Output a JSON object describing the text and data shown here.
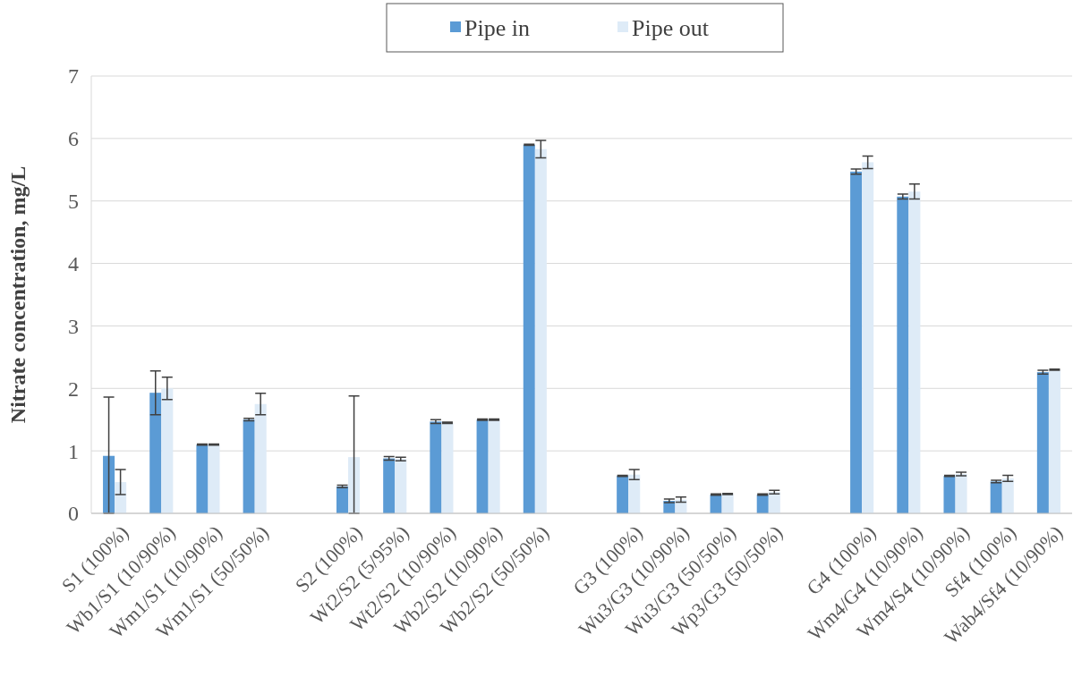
{
  "chart_data": {
    "type": "bar",
    "ylabel": "Nitrate concentration, mg/L",
    "categories": [
      "S1 (100%)",
      "Wb1/S1 (10/90%)",
      "Wm1/S1 (10/90%)",
      "Wm1/S1 (50/50%)",
      null,
      "S2 (100%)",
      "Wt2/S2 (5/95%)",
      "Wt2/S2 (10/90%)",
      "Wb2/S2 (10/90%)",
      "Wb2/S2 (50/50%)",
      null,
      "G3 (100%)",
      "Wu3/G3 (10/90%)",
      "Wu3/G3 (50/50%)",
      "Wp3/G3 (50/50%)",
      null,
      "G4 (100%)",
      "Wm4/G4 (10/90%)",
      "Wm4/S4 (10/90%)",
      "Sf4 (100%)",
      "Wab4/Sf4 (10/90%)"
    ],
    "series": [
      {
        "name": "Pipe in",
        "color": "#5b9bd5",
        "values": [
          0.92,
          1.93,
          1.1,
          1.5,
          null,
          0.43,
          0.88,
          1.47,
          1.5,
          5.9,
          null,
          0.6,
          0.2,
          0.3,
          0.3,
          null,
          5.47,
          5.07,
          0.6,
          0.51,
          2.26
        ],
        "errors": [
          [
            0,
            1.86
          ],
          0.35,
          0.01,
          0.02,
          null,
          0.02,
          0.03,
          0.03,
          0.01,
          0.01,
          null,
          0.01,
          0.03,
          0.01,
          0.01,
          null,
          0.04,
          0.04,
          0.01,
          0.02,
          0.03
        ]
      },
      {
        "name": "Pipe out",
        "color": "#deebf7",
        "values": [
          0.5,
          2.0,
          1.1,
          1.75,
          null,
          0.9,
          0.87,
          1.45,
          1.5,
          5.83,
          null,
          0.62,
          0.22,
          0.31,
          0.34,
          null,
          5.62,
          5.15,
          0.63,
          0.56,
          2.3
        ],
        "errors": [
          0.2,
          0.18,
          0.01,
          0.17,
          null,
          [
            0,
            1.88
          ],
          0.03,
          0.01,
          0.01,
          0.14,
          null,
          0.08,
          0.04,
          0.01,
          0.03,
          null,
          0.1,
          0.12,
          0.03,
          0.05,
          0.01
        ]
      }
    ],
    "ylim": [
      0,
      7
    ],
    "yticks": [
      0,
      1,
      2,
      3,
      4,
      5,
      6,
      7
    ],
    "grid": "y",
    "legend": "top"
  }
}
